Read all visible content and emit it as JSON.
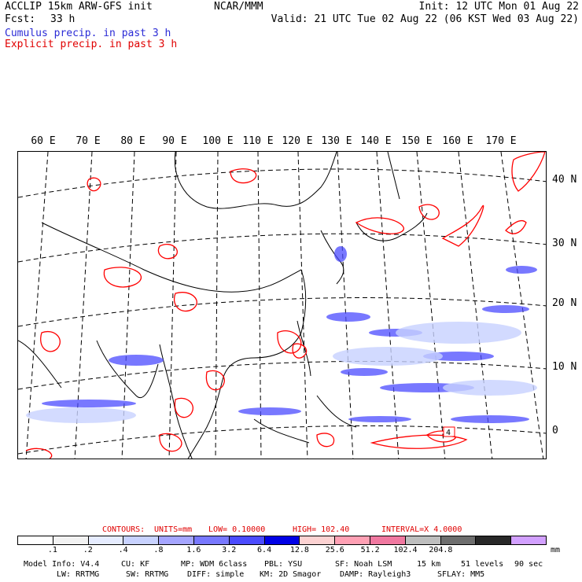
{
  "header": {
    "model_line": "ACCLIP 15km ARW-GFS init",
    "fcst_label": "Fcst:",
    "fcst_value": "33 h",
    "center": "NCAR/MMM",
    "init": "Init: 12 UTC Mon 01 Aug 22",
    "valid": "Valid: 21 UTC Tue 02 Aug 22 (06 KST Wed 03 Aug 22)",
    "field1": "Cumulus precip. in past 3 h",
    "field2": "Explicit precip. in past 3 h"
  },
  "map": {
    "longitude_labels": [
      "60 E",
      "70 E",
      "80 E",
      "90 E",
      "100 E",
      "110 E",
      "120 E",
      "130 E",
      "140 E",
      "150 E",
      "160 E",
      "170 E"
    ],
    "latitude_labels": [
      "40 N",
      "30 N",
      "20 N",
      "10 N",
      "0"
    ],
    "inline_label": "4",
    "colors": {
      "cumulus": "#3333ff",
      "explicit": "#ff0000",
      "land_outline": "#000000"
    }
  },
  "contours": {
    "label": "CONTOURS:",
    "units": "UNITS=mm",
    "low": "LOW= 0.10000",
    "high": "HIGH= 102.40",
    "interval": "INTERVAL=X 4.0000"
  },
  "colorbar": {
    "colors": [
      "#ffffff",
      "#f2f2f2",
      "#e6ecff",
      "#c8d2ff",
      "#a5a5ff",
      "#7878ff",
      "#4b4bff",
      "#0000e6",
      "#fcd2d2",
      "#ffa0b4",
      "#f078a0",
      "#bebebe",
      "#6e6e6e",
      "#282828",
      "#d2a0ff"
    ],
    "ticks": [
      ".1",
      ".2",
      ".4",
      ".8",
      "1.6",
      "3.2",
      "6.4",
      "12.8",
      "25.6",
      "51.2",
      "102.4",
      "204.8"
    ],
    "unit": "mm"
  },
  "footer": {
    "line1": [
      "Model Info: V4.4",
      "CU: KF",
      "MP: WDM 6class",
      "PBL: YSU",
      "SF: Noah LSM",
      "15 km",
      "51 levels",
      "90 sec"
    ],
    "line2": [
      "LW: RRTMG",
      "SW: RRTMG",
      "DIFF: simple",
      "KM: 2D Smagor",
      "DAMP: Rayleigh3",
      "SFLAY: MM5"
    ]
  }
}
